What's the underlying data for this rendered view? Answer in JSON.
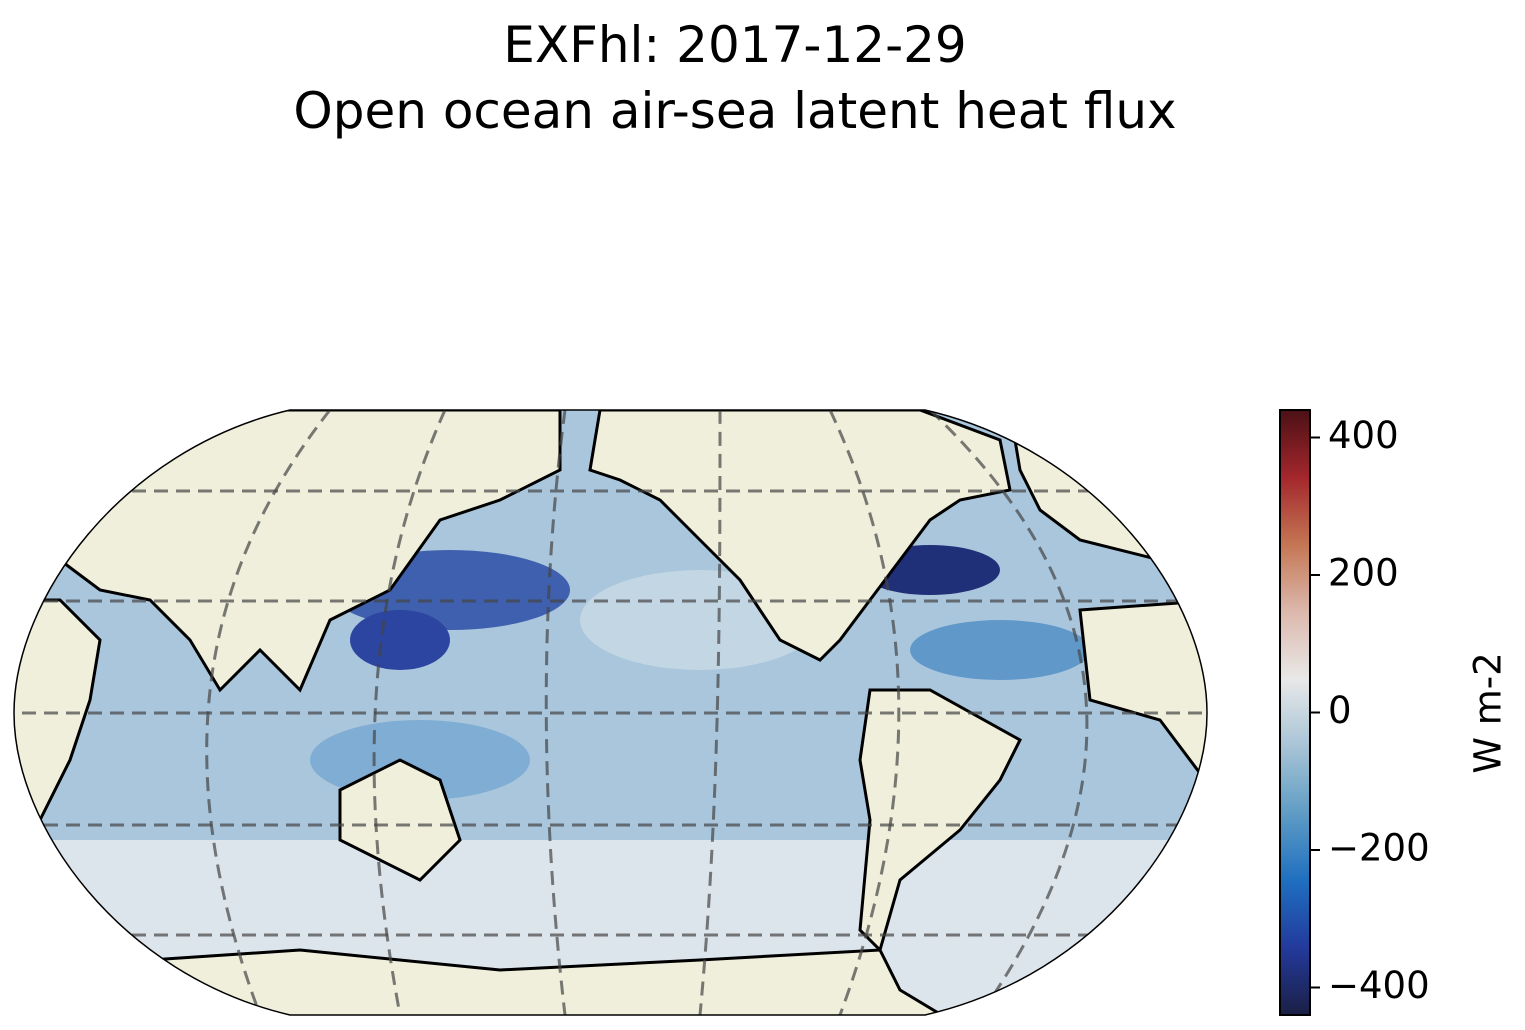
{
  "chart_data": {
    "type": "map",
    "title": "EXFhl: 2017-12-29",
    "subtitle": "Open ocean air-sea latent heat flux",
    "colorbar": {
      "label": "W m-2",
      "lim": [
        -440,
        440
      ],
      "ticks": [
        {
          "value": -400,
          "label": "−400"
        },
        {
          "value": -200,
          "label": "−200"
        },
        0,
        200,
        400
      ],
      "colors": [
        "#1b1f45",
        "#233a9c",
        "#1f6fc0",
        "#5f9cc4",
        "#a8c4d6",
        "#e8e8e8",
        "#dcb8ac",
        "#c47654",
        "#a3272c",
        "#4b1016"
      ]
    }
  }
}
